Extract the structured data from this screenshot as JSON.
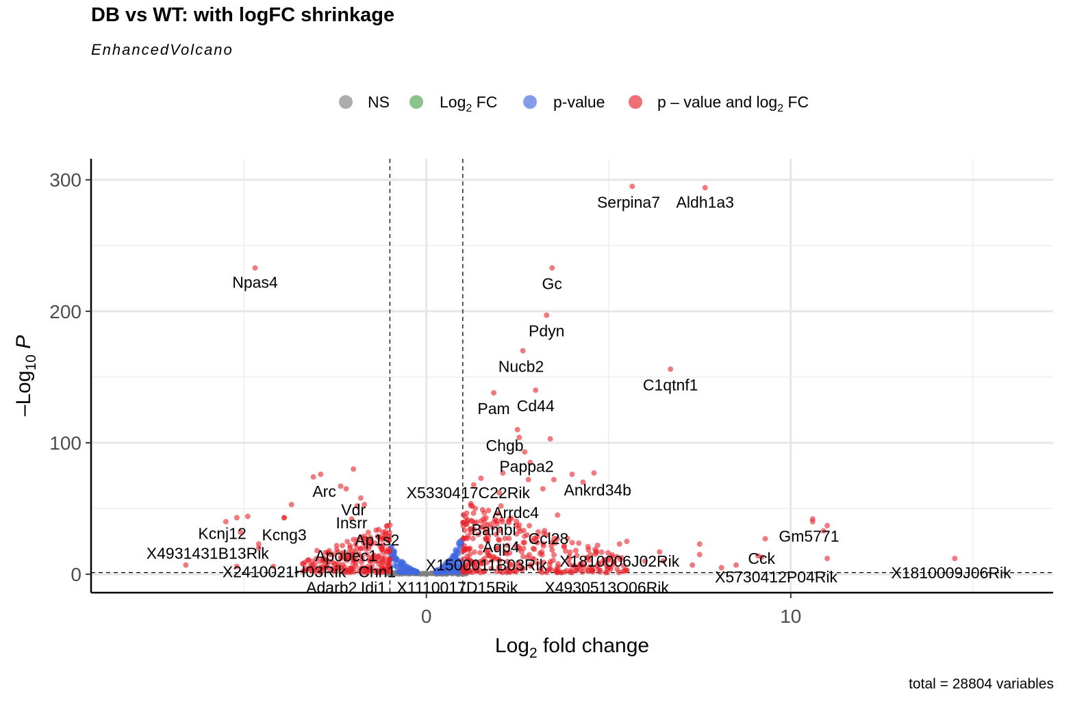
{
  "chart_data": {
    "type": "scatter",
    "title": "DB vs WT: with logFC shrinkage",
    "subtitle": "EnhancedVolcano",
    "caption": "total = 28804 variables",
    "xlabel": "Log2 fold change",
    "ylabel": "-Log10 P",
    "xlim": [
      -9.2,
      17.2
    ],
    "ylim": [
      -14,
      316
    ],
    "xticks": [
      0,
      10
    ],
    "yticks": [
      0,
      100,
      200,
      300
    ],
    "fc_cutoff": 1,
    "p_cutoff_log10": 1.3,
    "legend": {
      "position": "top",
      "items": [
        {
          "key": "NS",
          "label": "NS",
          "color": "#7f7f7f"
        },
        {
          "key": "FC",
          "label": "Log2 FC",
          "color": "#4ea24e"
        },
        {
          "key": "P",
          "label": "p-value",
          "color": "#4169e1"
        },
        {
          "key": "FCP",
          "label": "p - value and log2 FC",
          "color": "#e8222a"
        }
      ]
    },
    "labeled_points": [
      {
        "label": "Serpina7",
        "x": 5.65,
        "y": 295,
        "lx": 5.55,
        "ly": 283
      },
      {
        "label": "Aldh1a3",
        "x": 7.65,
        "y": 294,
        "lx": 7.65,
        "ly": 283
      },
      {
        "label": "Npas4",
        "x": -4.7,
        "y": 233,
        "lx": -4.7,
        "ly": 222
      },
      {
        "label": "Gc",
        "x": 3.45,
        "y": 233,
        "lx": 3.45,
        "ly": 221
      },
      {
        "label": "Pdyn",
        "x": 3.3,
        "y": 197,
        "lx": 3.3,
        "ly": 185
      },
      {
        "label": "Nucb2",
        "x": 2.65,
        "y": 170,
        "lx": 2.6,
        "ly": 158
      },
      {
        "label": "C1qtnf1",
        "x": 6.7,
        "y": 156,
        "lx": 6.7,
        "ly": 144
      },
      {
        "label": "Pam",
        "x": 1.85,
        "y": 138,
        "lx": 1.85,
        "ly": 126
      },
      {
        "label": "Cd44",
        "x": 3.0,
        "y": 140,
        "lx": 3.0,
        "ly": 128
      },
      {
        "label": "Chgb",
        "x": 2.55,
        "y": 104,
        "lx": 2.15,
        "ly": 98
      },
      {
        "label": "Pappa2",
        "x": 2.85,
        "y": 85,
        "lx": 2.75,
        "ly": 82
      },
      {
        "label": "Arc",
        "x": -2.35,
        "y": 67,
        "lx": -2.8,
        "ly": 63
      },
      {
        "label": "X5330417C22Rik",
        "x": 1.3,
        "y": 68,
        "lx": 1.15,
        "ly": 62
      },
      {
        "label": "Ankrd34b",
        "x": 4.3,
        "y": 70,
        "lx": 4.7,
        "ly": 64
      },
      {
        "label": "Vdr",
        "x": -1.9,
        "y": 52,
        "lx": -2.0,
        "ly": 49
      },
      {
        "label": "Arrdc4",
        "x": 2.05,
        "y": 52,
        "lx": 2.45,
        "ly": 47
      },
      {
        "label": "Insrr",
        "x": -2.05,
        "y": 42,
        "lx": -2.05,
        "ly": 39
      },
      {
        "label": "Bambi",
        "x": 1.75,
        "y": 38,
        "lx": 1.85,
        "ly": 34
      },
      {
        "label": "Kcnj12",
        "x": -5.2,
        "y": 43,
        "lx": -5.6,
        "ly": 31
      },
      {
        "label": "Kcng3",
        "x": -3.9,
        "y": 43,
        "lx": -3.9,
        "ly": 30
      },
      {
        "label": "Ap1s2",
        "x": -1.3,
        "y": 28,
        "lx": -1.35,
        "ly": 26
      },
      {
        "label": "Ccl28",
        "x": 3.3,
        "y": 30,
        "lx": 3.35,
        "ly": 27
      },
      {
        "label": "Gm5771",
        "x": 10.6,
        "y": 40,
        "lx": 10.5,
        "ly": 29
      },
      {
        "label": "Aqp4",
        "x": 2.0,
        "y": 26,
        "lx": 2.05,
        "ly": 21
      },
      {
        "label": "X4931431B13Rik",
        "x": -4.6,
        "y": 20,
        "lx": -6.0,
        "ly": 16
      },
      {
        "label": "Apobec1",
        "x": -3.0,
        "y": 18,
        "lx": -2.2,
        "ly": 14
      },
      {
        "label": "Cck",
        "x": 9.1,
        "y": 14,
        "lx": 9.2,
        "ly": 12
      },
      {
        "label": "X1810006J02Rik",
        "x": 6.5,
        "y": 10,
        "lx": 5.3,
        "ly": 10
      },
      {
        "label": "X1500011B03Rik",
        "x": 1.5,
        "y": 8,
        "lx": 1.65,
        "ly": 7
      },
      {
        "label": "X2410021H03Rik",
        "x": -4.2,
        "y": 6,
        "lx": -3.9,
        "ly": 2
      },
      {
        "label": "Chn1",
        "x": -1.6,
        "y": 6,
        "lx": -1.35,
        "ly": 2
      },
      {
        "label": "X5730412P04Rik",
        "x": 8.5,
        "y": 7,
        "lx": 9.6,
        "ly": -2
      },
      {
        "label": "X1810009J06Rik",
        "x": 14.5,
        "y": 12,
        "lx": 14.4,
        "ly": 1
      },
      {
        "label": "Adarb2",
        "x": -2.2,
        "y": 3,
        "lx": -2.6,
        "ly": -10
      },
      {
        "label": "Idi1",
        "x": -1.5,
        "y": 3,
        "lx": -1.45,
        "ly": -10
      },
      {
        "label": "X1110017D15Rik",
        "x": 1.2,
        "y": 3,
        "lx": 0.85,
        "ly": -10
      },
      {
        "label": "X4930513O06Rik",
        "x": 5.5,
        "y": 3,
        "lx": 4.95,
        "ly": -10
      }
    ]
  }
}
